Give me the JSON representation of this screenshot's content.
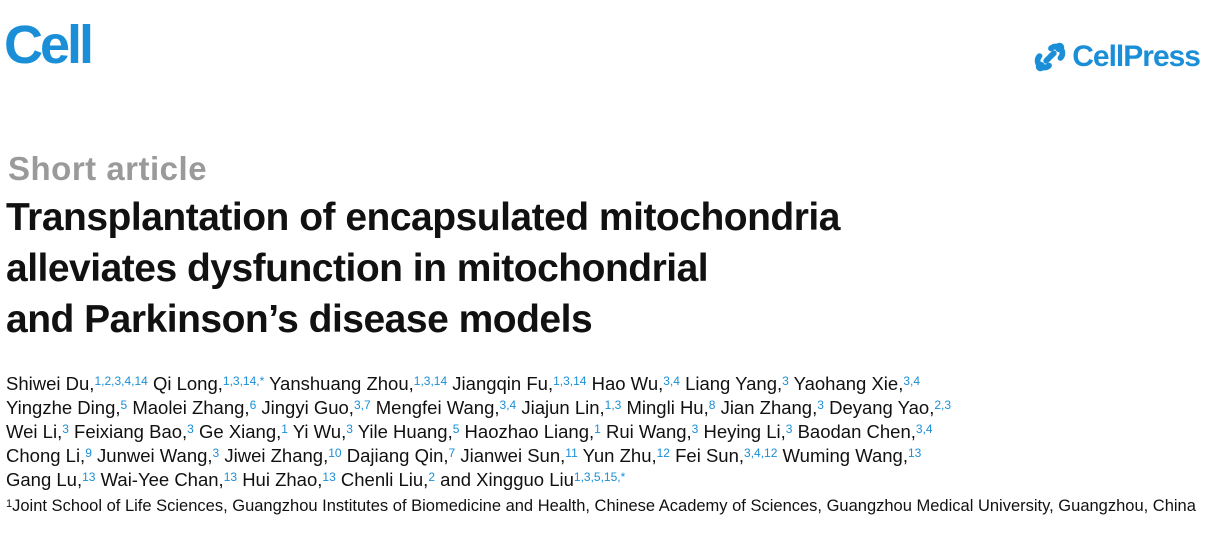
{
  "header": {
    "journal_logo": "Cell",
    "publisher_logo": "CellPress",
    "brand_color": "#1a8fd8"
  },
  "article_type": "Short article",
  "title_lines": [
    "Transplantation of encapsulated mitochondria",
    "alleviates dysfunction in mitochondrial",
    "and Parkinson’s disease models"
  ],
  "author_lines": [
    [
      {
        "name": "Shiwei Du,",
        "sup": "1,2,3,4,14"
      },
      {
        "name": "Qi Long,",
        "sup": "1,3,14,*"
      },
      {
        "name": "Yanshuang Zhou,",
        "sup": "1,3,14"
      },
      {
        "name": "Jiangqin Fu,",
        "sup": "1,3,14"
      },
      {
        "name": "Hao Wu,",
        "sup": "3,4"
      },
      {
        "name": "Liang Yang,",
        "sup": "3"
      },
      {
        "name": "Yaohang Xie,",
        "sup": "3,4"
      }
    ],
    [
      {
        "name": "Yingzhe Ding,",
        "sup": "5"
      },
      {
        "name": "Maolei Zhang,",
        "sup": "6"
      },
      {
        "name": "Jingyi Guo,",
        "sup": "3,7"
      },
      {
        "name": "Mengfei Wang,",
        "sup": "3,4"
      },
      {
        "name": "Jiajun Lin,",
        "sup": "1,3"
      },
      {
        "name": "Mingli Hu,",
        "sup": "8"
      },
      {
        "name": "Jian Zhang,",
        "sup": "3"
      },
      {
        "name": "Deyang Yao,",
        "sup": "2,3"
      }
    ],
    [
      {
        "name": "Wei Li,",
        "sup": "3"
      },
      {
        "name": "Feixiang Bao,",
        "sup": "3"
      },
      {
        "name": "Ge Xiang,",
        "sup": "1"
      },
      {
        "name": "Yi Wu,",
        "sup": "3"
      },
      {
        "name": "Yile Huang,",
        "sup": "5"
      },
      {
        "name": "Haozhao Liang,",
        "sup": "1"
      },
      {
        "name": "Rui Wang,",
        "sup": "3"
      },
      {
        "name": "Heying Li,",
        "sup": "3"
      },
      {
        "name": "Baodan Chen,",
        "sup": "3,4"
      }
    ],
    [
      {
        "name": "Chong Li,",
        "sup": "9"
      },
      {
        "name": "Junwei Wang,",
        "sup": "3"
      },
      {
        "name": "Jiwei Zhang,",
        "sup": "10"
      },
      {
        "name": "Dajiang Qin,",
        "sup": "7"
      },
      {
        "name": "Jianwei Sun,",
        "sup": "11"
      },
      {
        "name": "Yun Zhu,",
        "sup": "12"
      },
      {
        "name": "Fei Sun,",
        "sup": "3,4,12"
      },
      {
        "name": "Wuming Wang,",
        "sup": "13"
      }
    ],
    [
      {
        "name": "Gang Lu,",
        "sup": "13"
      },
      {
        "name": "Wai-Yee Chan,",
        "sup": "13"
      },
      {
        "name": "Hui Zhao,",
        "sup": "13"
      },
      {
        "name": "Chenli Liu,",
        "sup": "2"
      },
      {
        "name": "and Xingguo Liu",
        "sup": "1,3,5,15,*"
      }
    ]
  ],
  "affiliation": {
    "num": "1",
    "text": "Joint School of Life Sciences, Guangzhou Institutes of Biomedicine and Health, Chinese Academy of Sciences, Guangzhou Medical University, Guangzhou, China"
  }
}
